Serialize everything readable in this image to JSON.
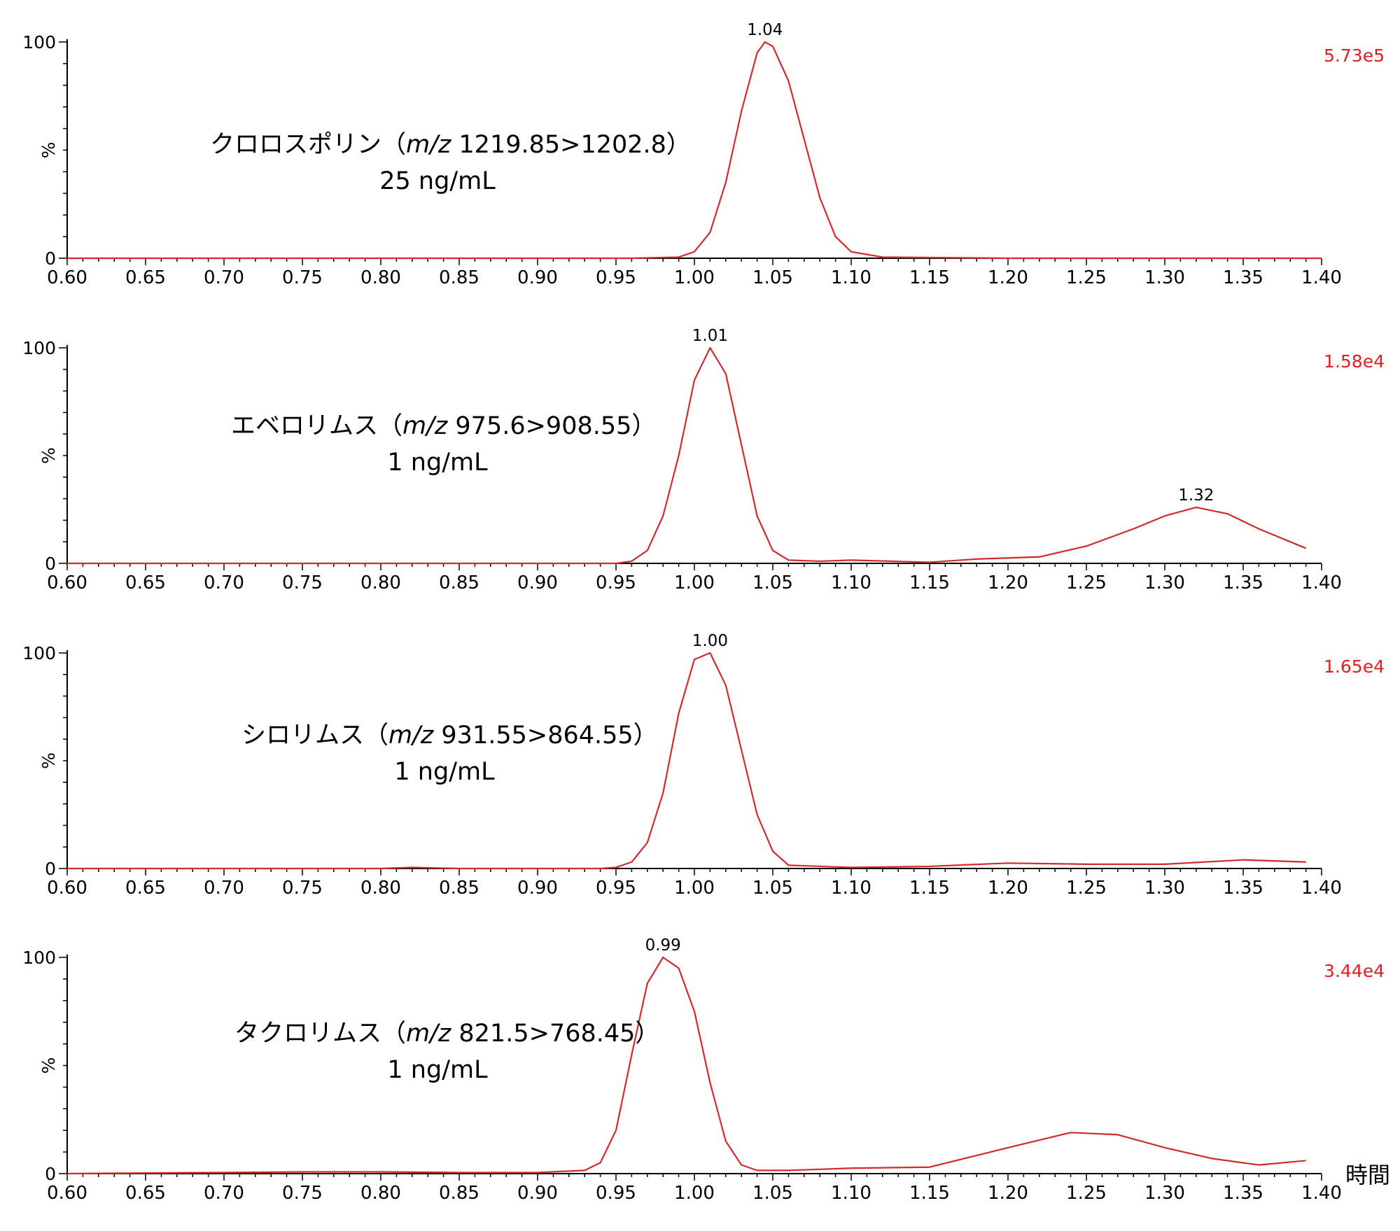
{
  "chart_data": [
    {
      "type": "line",
      "analyte": "クロロスポリン",
      "mz_prefix": "m/z",
      "mz": "1219.85>1202.8",
      "concentration": "25 ng/mL",
      "scale": "5.73e5",
      "peak_label": "1.04",
      "ylabel": "%",
      "yticks": [
        "0",
        "100"
      ],
      "xlim": [
        0.6,
        1.4
      ],
      "ylim": [
        0,
        100
      ],
      "color": "#d42a2a",
      "x": [
        0.6,
        0.7,
        0.8,
        0.9,
        0.96,
        0.99,
        1.0,
        1.01,
        1.02,
        1.03,
        1.04,
        1.045,
        1.05,
        1.06,
        1.07,
        1.08,
        1.09,
        1.1,
        1.12,
        1.2,
        1.3,
        1.4
      ],
      "y": [
        0,
        0,
        0,
        0,
        0,
        0.5,
        3,
        12,
        35,
        68,
        95,
        100,
        98,
        82,
        55,
        28,
        10,
        3,
        0.5,
        0,
        0,
        0
      ]
    },
    {
      "type": "line",
      "analyte": "エベロリムス",
      "mz_prefix": "m/z",
      "mz": "975.6>908.55",
      "concentration": "1 ng/mL",
      "scale": "1.58e4",
      "peak_label": "1.01",
      "second_peak_label": "1.32",
      "ylabel": "%",
      "yticks": [
        "0",
        "100"
      ],
      "xlim": [
        0.6,
        1.4
      ],
      "ylim": [
        0,
        100
      ],
      "color": "#d42a2a",
      "x": [
        0.6,
        0.7,
        0.8,
        0.9,
        0.95,
        0.96,
        0.97,
        0.98,
        0.99,
        1.0,
        1.01,
        1.02,
        1.03,
        1.04,
        1.05,
        1.06,
        1.08,
        1.1,
        1.15,
        1.18,
        1.22,
        1.25,
        1.28,
        1.3,
        1.32,
        1.34,
        1.36,
        1.39
      ],
      "y": [
        0,
        0,
        0,
        0,
        0,
        1,
        6,
        22,
        50,
        85,
        100,
        88,
        55,
        22,
        6,
        1.5,
        1,
        1.5,
        0.5,
        2,
        3,
        8,
        16,
        22,
        26,
        23,
        16,
        7
      ]
    },
    {
      "type": "line",
      "analyte": "シロリムス",
      "mz_prefix": "m/z",
      "mz": "931.55>864.55",
      "concentration": "1 ng/mL",
      "scale": "1.65e4",
      "peak_label": "1.00",
      "ylabel": "%",
      "yticks": [
        "0",
        "100"
      ],
      "xlim": [
        0.6,
        1.4
      ],
      "ylim": [
        0,
        100
      ],
      "color": "#d42a2a",
      "x": [
        0.6,
        0.7,
        0.8,
        0.82,
        0.85,
        0.9,
        0.94,
        0.95,
        0.96,
        0.97,
        0.98,
        0.99,
        1.0,
        1.01,
        1.02,
        1.03,
        1.04,
        1.05,
        1.06,
        1.1,
        1.15,
        1.2,
        1.25,
        1.3,
        1.35,
        1.39
      ],
      "y": [
        0,
        0,
        0,
        0.5,
        0,
        0,
        0,
        0.5,
        3,
        12,
        35,
        72,
        97,
        100,
        85,
        55,
        25,
        8,
        1.5,
        0.5,
        1,
        2.5,
        2,
        2,
        4,
        3
      ]
    },
    {
      "type": "line",
      "analyte": "タクロリムス",
      "mz_prefix": "m/z",
      "mz": "821.5>768.45",
      "concentration": "1 ng/mL",
      "scale": "3.44e4",
      "peak_label": "0.99",
      "xlabel": "時間",
      "ylabel": "%",
      "yticks": [
        "0",
        "100"
      ],
      "xlim": [
        0.6,
        1.4
      ],
      "ylim": [
        0,
        100
      ],
      "color": "#d42a2a",
      "x": [
        0.6,
        0.7,
        0.75,
        0.8,
        0.85,
        0.9,
        0.93,
        0.94,
        0.95,
        0.96,
        0.97,
        0.98,
        0.99,
        1.0,
        1.01,
        1.02,
        1.03,
        1.04,
        1.06,
        1.1,
        1.15,
        1.2,
        1.24,
        1.27,
        1.3,
        1.33,
        1.36,
        1.39
      ],
      "y": [
        0,
        0.5,
        0.8,
        0.8,
        0.5,
        0.5,
        1.5,
        5,
        20,
        55,
        88,
        100,
        95,
        75,
        42,
        15,
        4,
        1.5,
        1.5,
        2.5,
        3,
        12,
        19,
        18,
        12,
        7,
        4,
        6
      ]
    }
  ],
  "shared": {
    "xticks": [
      "0.60",
      "0.65",
      "0.70",
      "0.75",
      "0.80",
      "0.85",
      "0.90",
      "0.95",
      "1.00",
      "1.05",
      "1.10",
      "1.15",
      "1.20",
      "1.25",
      "1.30",
      "1.35",
      "1.40"
    ]
  }
}
